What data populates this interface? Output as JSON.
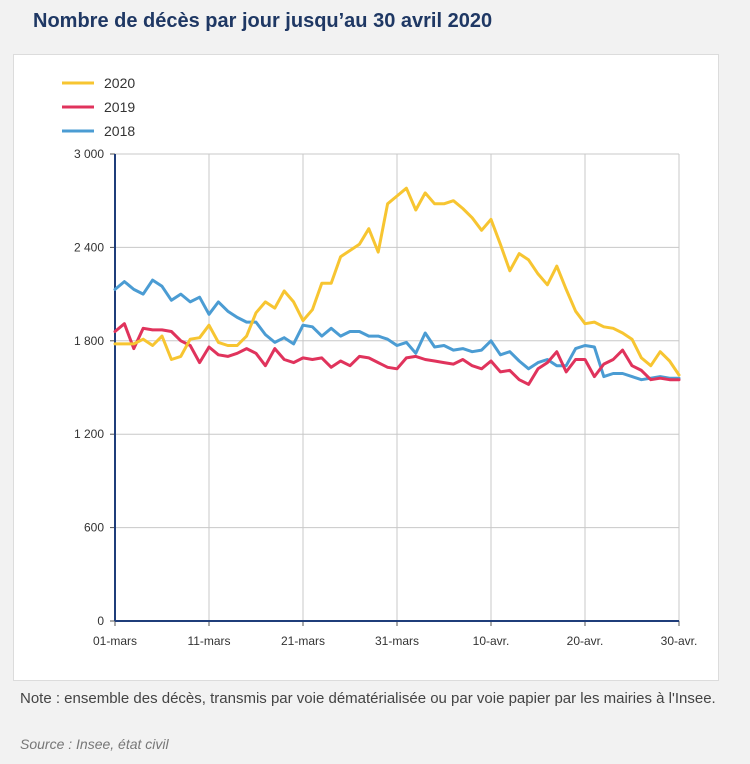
{
  "header": {
    "title": "Nombre de décès par jour jusqu’au 30 avril 2020"
  },
  "footer": {
    "note": "Note : ensemble des décès, transmis par voie dématérialisée ou par voie papier par les mairies à l'Insee.",
    "source": "Source : Insee, état civil"
  },
  "chart_data": {
    "type": "line",
    "title": "",
    "xlabel": "",
    "ylabel": "",
    "ylim": [
      0,
      3000
    ],
    "grid": true,
    "legend_position": "top-left",
    "x_ticks": [
      "01-mars",
      "11-mars",
      "21-mars",
      "31-mars",
      "10-avr.",
      "20-avr.",
      "30-avr."
    ],
    "y_ticks": [
      0,
      600,
      1200,
      1800,
      2400,
      3000
    ],
    "y_tick_labels": [
      "0",
      "600",
      "1 200",
      "1 800",
      "2 400",
      "3 000"
    ],
    "x_start": "01-mars",
    "x_end": "30-avr.",
    "series": [
      {
        "name": "2020",
        "color": "#f7c531",
        "values": [
          1780,
          1780,
          1780,
          1810,
          1770,
          1830,
          1680,
          1700,
          1810,
          1820,
          1900,
          1790,
          1770,
          1770,
          1830,
          1980,
          2050,
          2010,
          2120,
          2050,
          1930,
          2000,
          2170,
          2170,
          2340,
          2380,
          2420,
          2520,
          2370,
          2680,
          2730,
          2780,
          2640,
          2750,
          2680,
          2680,
          2700,
          2650,
          2590,
          2510,
          2580,
          2420,
          2250,
          2360,
          2320,
          2230,
          2160,
          2280,
          2130,
          1990,
          1910,
          1920,
          1890,
          1880,
          1850,
          1810,
          1690,
          1640,
          1730,
          1670,
          1580
        ]
      },
      {
        "name": "2019",
        "color": "#e0335c",
        "values": [
          1860,
          1910,
          1750,
          1880,
          1870,
          1870,
          1860,
          1800,
          1770,
          1660,
          1760,
          1710,
          1700,
          1720,
          1750,
          1720,
          1640,
          1750,
          1680,
          1660,
          1690,
          1680,
          1690,
          1630,
          1670,
          1640,
          1700,
          1690,
          1660,
          1630,
          1620,
          1690,
          1700,
          1680,
          1670,
          1660,
          1650,
          1680,
          1640,
          1620,
          1670,
          1600,
          1610,
          1550,
          1520,
          1620,
          1660,
          1730,
          1600,
          1680,
          1680,
          1570,
          1650,
          1680,
          1740,
          1640,
          1610,
          1550,
          1560,
          1550,
          1550
        ]
      },
      {
        "name": "2018",
        "color": "#4b9cd3",
        "values": [
          2130,
          2180,
          2130,
          2100,
          2190,
          2150,
          2060,
          2100,
          2050,
          2080,
          1970,
          2050,
          1990,
          1950,
          1920,
          1920,
          1840,
          1790,
          1820,
          1780,
          1900,
          1890,
          1830,
          1880,
          1830,
          1860,
          1860,
          1830,
          1830,
          1810,
          1770,
          1790,
          1720,
          1850,
          1760,
          1770,
          1740,
          1750,
          1730,
          1740,
          1800,
          1710,
          1730,
          1670,
          1620,
          1660,
          1680,
          1640,
          1640,
          1750,
          1770,
          1760,
          1570,
          1590,
          1590,
          1570,
          1550,
          1560,
          1570,
          1560,
          1560
        ]
      }
    ]
  }
}
